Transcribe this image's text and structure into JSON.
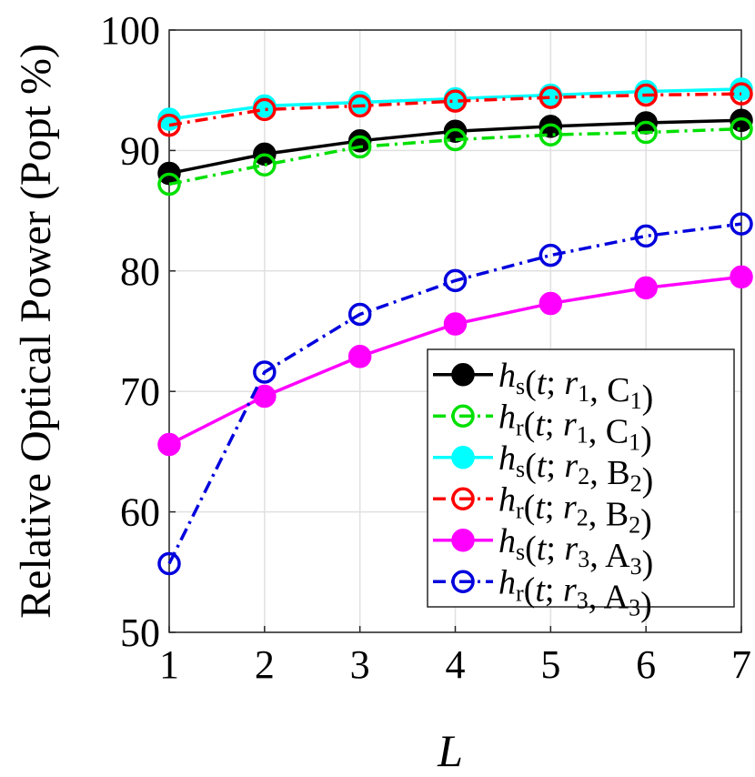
{
  "chart_data": {
    "type": "line",
    "xlabel": "L",
    "ylabel": "Relative Optical Power (Popt %)",
    "x": [
      1,
      2,
      3,
      4,
      5,
      6,
      7
    ],
    "xlim": [
      1,
      7
    ],
    "xticks": [
      1,
      2,
      3,
      4,
      5,
      6,
      7
    ],
    "ylim": [
      50,
      100
    ],
    "yticks": [
      50,
      60,
      70,
      80,
      90,
      100
    ],
    "grid": true,
    "legend": "lower right",
    "series": [
      {
        "name": "hs(t;r1,C1)",
        "color": "#000000",
        "marker": "filled",
        "dash": "solid",
        "values": [
          88.1,
          89.7,
          90.8,
          91.6,
          92.0,
          92.3,
          92.5
        ]
      },
      {
        "name": "hr(t;r1,C1)",
        "color": "#00e000",
        "marker": "open",
        "dash": "dashdot",
        "values": [
          87.2,
          88.8,
          90.3,
          90.9,
          91.3,
          91.5,
          91.8
        ]
      },
      {
        "name": "hs(t;r2,B2)",
        "color": "#00ffff",
        "marker": "filled",
        "dash": "solid",
        "values": [
          92.6,
          93.7,
          94.0,
          94.3,
          94.6,
          94.9,
          95.1
        ]
      },
      {
        "name": "hr(t;r2,B2)",
        "color": "#ff0000",
        "marker": "open",
        "dash": "dashdot",
        "values": [
          92.1,
          93.4,
          93.7,
          94.1,
          94.4,
          94.6,
          94.7
        ]
      },
      {
        "name": "hs(t;r3,A3)",
        "color": "#ff00ff",
        "marker": "filled",
        "dash": "solid",
        "values": [
          65.6,
          69.6,
          72.9,
          75.6,
          77.3,
          78.6,
          79.5
        ]
      },
      {
        "name": "hr(t;r3,A3)",
        "color": "#0000dd",
        "marker": "open",
        "dash": "dashdot",
        "values": [
          55.7,
          71.6,
          76.4,
          79.2,
          81.3,
          82.9,
          83.9
        ]
      }
    ]
  }
}
